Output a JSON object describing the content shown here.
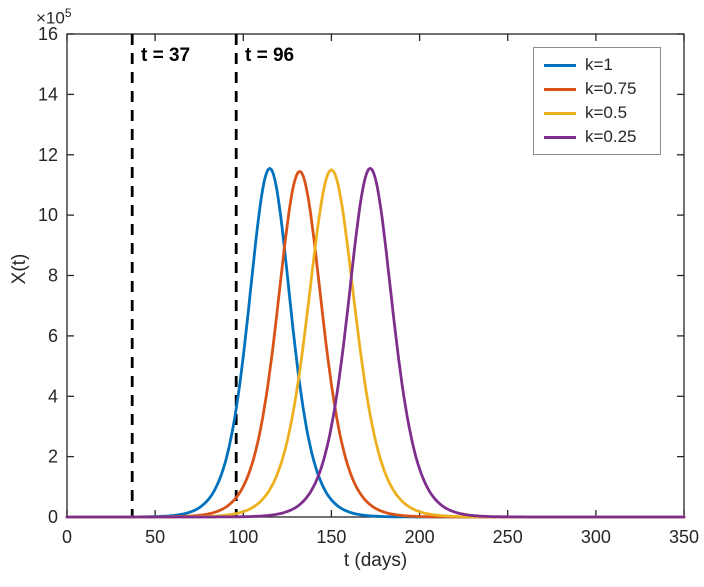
{
  "figure": {
    "background": "#ffffff"
  },
  "chart_data": {
    "type": "line",
    "title": "",
    "xlabel": "t (days)",
    "ylabel": "X(t)",
    "y_scale_label": {
      "base": "×10",
      "exp": "5"
    },
    "xlim": [
      0,
      350
    ],
    "ylim": [
      0,
      16
    ],
    "xticks": [
      0,
      50,
      100,
      150,
      200,
      250,
      300,
      350
    ],
    "yticks": [
      0,
      2,
      4,
      6,
      8,
      10,
      12,
      14,
      16
    ],
    "grid": false,
    "legend_position": "top-right",
    "y_units": "1e5",
    "curve_model": "y(t) = peak_y * sech((t - peak_t)/width)^2, y in units of 10^5",
    "series": [
      {
        "label": "k=1",
        "color": "#0072BD",
        "peak_t": 115,
        "peak_y": 11.55,
        "width": 16
      },
      {
        "label": "k=0.75",
        "color": "#D95319",
        "peak_t": 132,
        "peak_y": 11.45,
        "width": 17
      },
      {
        "label": "k=0.5",
        "color": "#EDB120",
        "peak_t": 150,
        "peak_y": 11.5,
        "width": 18
      },
      {
        "label": "k=0.25",
        "color": "#7E2F8E",
        "peak_t": 172,
        "peak_y": 11.55,
        "width": 17
      }
    ],
    "annotations": [
      {
        "label": "t = 37",
        "t": 37,
        "line_style": "dashed",
        "color": "#000000"
      },
      {
        "label": "t = 96",
        "t": 96,
        "line_style": "dashed",
        "color": "#000000"
      }
    ]
  }
}
